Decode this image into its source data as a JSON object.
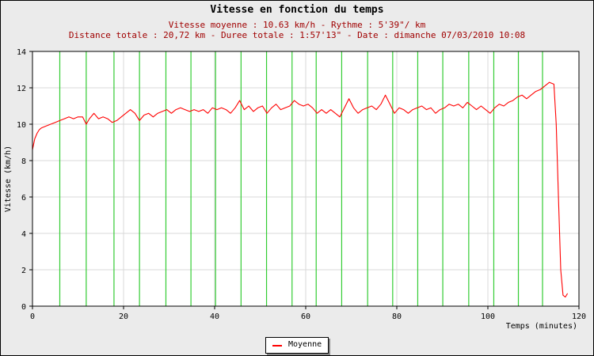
{
  "chart_data": {
    "type": "line",
    "title": "Vitesse en fonction du temps",
    "subtitle_lines": [
      "Vitesse moyenne : 10.63 km/h - Rythme : 5'39\"/ km",
      "Distance totale : 20,72 km - Duree totale : 1:57'13\" - Date : dimanche 07/03/2010 10:08"
    ],
    "xlabel": "Temps (minutes)",
    "ylabel": "Vitesse (km/h)",
    "xlim": [
      0,
      120
    ],
    "ylim": [
      0,
      14
    ],
    "x_ticks": [
      0,
      20,
      40,
      60,
      80,
      100,
      120
    ],
    "y_ticks": [
      0,
      2,
      4,
      6,
      8,
      10,
      12,
      14
    ],
    "grid": true,
    "legend_position": "bottom-center",
    "split_markers_x": [
      6.0,
      11.8,
      17.9,
      23.5,
      29.3,
      34.8,
      40.2,
      45.8,
      51.4,
      57.0,
      62.3,
      67.9,
      73.6,
      79.1,
      84.6,
      90.1,
      95.8,
      101.3,
      106.7,
      112.0
    ],
    "series": [
      {
        "name": "Moyenne",
        "color": "#ff0000",
        "points": [
          [
            0,
            8.6
          ],
          [
            0.5,
            9.2
          ],
          [
            1,
            9.5
          ],
          [
            1.5,
            9.7
          ],
          [
            2,
            9.8
          ],
          [
            3,
            9.9
          ],
          [
            4,
            10.0
          ],
          [
            5,
            10.1
          ],
          [
            6,
            10.2
          ],
          [
            7,
            10.3
          ],
          [
            8,
            10.4
          ],
          [
            9,
            10.3
          ],
          [
            10,
            10.4
          ],
          [
            11,
            10.4
          ],
          [
            11.8,
            10.0
          ],
          [
            12.5,
            10.3
          ],
          [
            13.5,
            10.6
          ],
          [
            14.5,
            10.3
          ],
          [
            15.5,
            10.4
          ],
          [
            16.5,
            10.3
          ],
          [
            17.5,
            10.1
          ],
          [
            18.5,
            10.2
          ],
          [
            19.5,
            10.4
          ],
          [
            20.5,
            10.6
          ],
          [
            21.5,
            10.8
          ],
          [
            22.5,
            10.6
          ],
          [
            23.5,
            10.2
          ],
          [
            24.5,
            10.5
          ],
          [
            25.5,
            10.6
          ],
          [
            26.5,
            10.4
          ],
          [
            27.5,
            10.6
          ],
          [
            28.5,
            10.7
          ],
          [
            29.5,
            10.8
          ],
          [
            30.5,
            10.6
          ],
          [
            31.5,
            10.8
          ],
          [
            32.5,
            10.9
          ],
          [
            33.5,
            10.8
          ],
          [
            34.5,
            10.7
          ],
          [
            35.5,
            10.8
          ],
          [
            36.5,
            10.7
          ],
          [
            37.5,
            10.8
          ],
          [
            38.5,
            10.6
          ],
          [
            39.5,
            10.9
          ],
          [
            40.5,
            10.8
          ],
          [
            41.5,
            10.9
          ],
          [
            42.5,
            10.8
          ],
          [
            43.5,
            10.6
          ],
          [
            44.5,
            10.9
          ],
          [
            45.5,
            11.3
          ],
          [
            46.5,
            10.8
          ],
          [
            47.5,
            11.0
          ],
          [
            48.5,
            10.7
          ],
          [
            49.5,
            10.9
          ],
          [
            50.5,
            11.0
          ],
          [
            51.5,
            10.6
          ],
          [
            52.5,
            10.9
          ],
          [
            53.5,
            11.1
          ],
          [
            54.5,
            10.8
          ],
          [
            55.5,
            10.9
          ],
          [
            56.5,
            11.0
          ],
          [
            57.5,
            11.3
          ],
          [
            58.5,
            11.1
          ],
          [
            59.5,
            11.0
          ],
          [
            60.5,
            11.1
          ],
          [
            61.5,
            10.9
          ],
          [
            62.5,
            10.6
          ],
          [
            63.5,
            10.8
          ],
          [
            64.5,
            10.6
          ],
          [
            65.5,
            10.8
          ],
          [
            66.5,
            10.6
          ],
          [
            67.5,
            10.4
          ],
          [
            68.5,
            10.9
          ],
          [
            69.5,
            11.4
          ],
          [
            70.5,
            10.9
          ],
          [
            71.5,
            10.6
          ],
          [
            72.5,
            10.8
          ],
          [
            73.5,
            10.9
          ],
          [
            74.5,
            11.0
          ],
          [
            75.5,
            10.8
          ],
          [
            76.5,
            11.1
          ],
          [
            77.5,
            11.6
          ],
          [
            78.5,
            11.1
          ],
          [
            79.5,
            10.6
          ],
          [
            80.5,
            10.9
          ],
          [
            81.5,
            10.8
          ],
          [
            82.5,
            10.6
          ],
          [
            83.5,
            10.8
          ],
          [
            84.5,
            10.9
          ],
          [
            85.5,
            11.0
          ],
          [
            86.5,
            10.8
          ],
          [
            87.5,
            10.9
          ],
          [
            88.5,
            10.6
          ],
          [
            89.5,
            10.8
          ],
          [
            90.5,
            10.9
          ],
          [
            91.5,
            11.1
          ],
          [
            92.5,
            11.0
          ],
          [
            93.5,
            11.1
          ],
          [
            94.5,
            10.9
          ],
          [
            95.5,
            11.2
          ],
          [
            96.5,
            11.0
          ],
          [
            97.5,
            10.8
          ],
          [
            98.5,
            11.0
          ],
          [
            99.5,
            10.8
          ],
          [
            100.5,
            10.6
          ],
          [
            101.5,
            10.9
          ],
          [
            102.5,
            11.1
          ],
          [
            103.5,
            11.0
          ],
          [
            104.5,
            11.2
          ],
          [
            105.5,
            11.3
          ],
          [
            106.5,
            11.5
          ],
          [
            107.5,
            11.6
          ],
          [
            108.5,
            11.4
          ],
          [
            109.5,
            11.6
          ],
          [
            110.5,
            11.8
          ],
          [
            111.5,
            11.9
          ],
          [
            112.5,
            12.1
          ],
          [
            113.5,
            12.3
          ],
          [
            114.5,
            12.2
          ],
          [
            115.0,
            10.0
          ],
          [
            115.5,
            6.0
          ],
          [
            116.0,
            2.0
          ],
          [
            116.5,
            0.6
          ],
          [
            117.0,
            0.5
          ],
          [
            117.5,
            0.7
          ]
        ]
      }
    ]
  }
}
